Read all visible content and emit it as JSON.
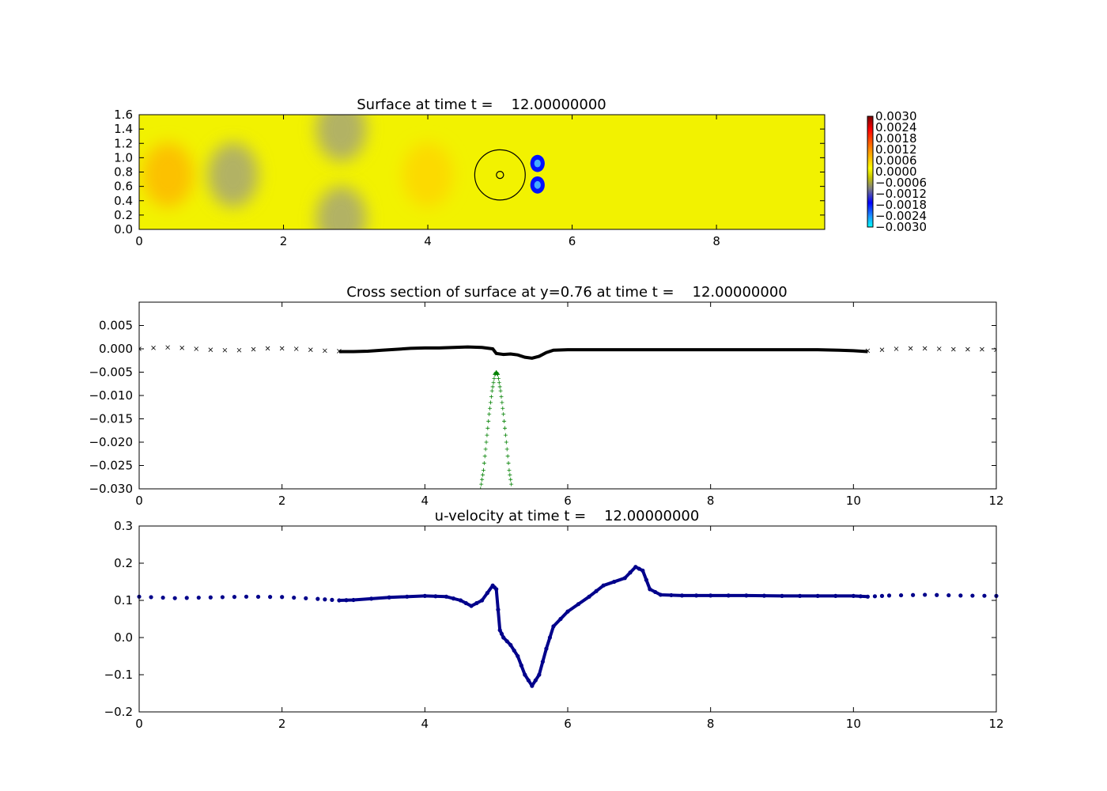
{
  "chart_data": [
    {
      "type": "heatmap",
      "title": "Surface at time t =    12.00000000",
      "xlim": [
        0,
        9.5
      ],
      "ylim": [
        0,
        1.6
      ],
      "xticks": [
        "0",
        "2",
        "4",
        "6",
        "8"
      ],
      "yticks": [
        "0.0",
        "0.2",
        "0.4",
        "0.6",
        "0.8",
        "1.0",
        "1.2",
        "1.4",
        "1.6"
      ],
      "colorbar": {
        "range": [
          -0.003,
          0.003
        ],
        "labels": [
          "0.0030",
          "0.0024",
          "0.0018",
          "0.0012",
          "0.0006",
          "0.0000",
          "−0.0006",
          "−0.0012",
          "−0.0018",
          "−0.0024",
          "−0.0030"
        ],
        "colormap_stops": [
          "#ffffff00"
        ]
      },
      "colors": {
        "background": "#f2f200",
        "positive": "#ffc300",
        "negative_weak": "#a0a070",
        "negative_strong": "#0010ff"
      },
      "features": [
        {
          "kind": "blob",
          "x": 0.4,
          "y": 0.76,
          "value": 0.0008
        },
        {
          "kind": "blob",
          "x": 1.3,
          "y": 0.76,
          "value": -0.0006
        },
        {
          "kind": "blob",
          "x": 2.8,
          "y": 1.4,
          "value": -0.001
        },
        {
          "kind": "blob",
          "x": 2.8,
          "y": 0.15,
          "value": -0.001
        },
        {
          "kind": "blob",
          "x": 4.0,
          "y": 0.76,
          "value": 0.0006
        },
        {
          "kind": "blob",
          "x": 5.52,
          "y": 0.92,
          "value": -0.0028
        },
        {
          "kind": "blob",
          "x": 5.52,
          "y": 0.62,
          "value": -0.0028
        },
        {
          "kind": "circle",
          "x": 5.0,
          "y": 0.76,
          "r": 0.35
        },
        {
          "kind": "circle",
          "x": 5.0,
          "y": 0.76,
          "r": 0.05
        }
      ]
    },
    {
      "type": "scatter",
      "title": "Cross section of surface at y=0.76 at time t =    12.00000000",
      "xlim": [
        0,
        12
      ],
      "ylim": [
        -0.03,
        0.01
      ],
      "xticks": [
        "0",
        "2",
        "4",
        "6",
        "8",
        "10",
        "12"
      ],
      "yticks": [
        "0.005",
        "0.000",
        "−0.005",
        "−0.010",
        "−0.015",
        "−0.020",
        "−0.025",
        "−0.030"
      ],
      "series": [
        {
          "marker": "x",
          "color": "#000000",
          "x": [
            0,
            0.2,
            0.4,
            0.6,
            0.8,
            1.0,
            1.2,
            1.4,
            1.6,
            1.8,
            2.0,
            2.2,
            2.4,
            2.6,
            2.8,
            10.2,
            10.4,
            10.6,
            10.8,
            11.0,
            11.2,
            11.4,
            11.6,
            11.8,
            12.0
          ],
          "y": [
            0.0,
            0.0002,
            0.0003,
            0.0002,
            0.0,
            -0.0002,
            -0.0003,
            -0.0003,
            -0.0001,
            0.0001,
            0.0001,
            0.0,
            -0.0002,
            -0.0004,
            -0.0005,
            -0.0004,
            -0.0002,
            0.0,
            0.0001,
            0.0001,
            0.0,
            -0.0001,
            -0.0001,
            -0.0001,
            -0.0002
          ]
        },
        {
          "marker": "dense-line",
          "color": "#000000",
          "x": [
            2.8,
            3.0,
            3.2,
            3.4,
            3.6,
            3.8,
            4.0,
            4.2,
            4.4,
            4.6,
            4.8,
            4.95,
            5.0,
            5.1,
            5.2,
            5.3,
            5.4,
            5.5,
            5.6,
            5.7,
            5.8,
            6.0,
            6.5,
            7.0,
            7.5,
            8.0,
            8.5,
            9.0,
            9.5,
            9.8,
            10.0,
            10.2
          ],
          "y": [
            -0.0006,
            -0.0006,
            -0.0005,
            -0.0003,
            -0.0001,
            0.0001,
            0.0002,
            0.0002,
            0.0003,
            0.0004,
            0.0003,
            0.0,
            -0.001,
            -0.0012,
            -0.0011,
            -0.0013,
            -0.0018,
            -0.002,
            -0.0016,
            -0.0008,
            -0.0003,
            -0.0002,
            -0.0002,
            -0.0002,
            -0.0002,
            -0.0002,
            -0.0002,
            -0.0002,
            -0.0002,
            -0.0003,
            -0.0004,
            -0.0006
          ]
        },
        {
          "marker": "+",
          "color": "#008000",
          "x": [
            4.78,
            4.82,
            4.86,
            4.9,
            4.94,
            4.98,
            5.0,
            5.02,
            5.06,
            5.1,
            5.14,
            5.18,
            5.22
          ],
          "y": [
            -0.03,
            -0.026,
            -0.02,
            -0.014,
            -0.009,
            -0.0055,
            -0.005,
            -0.0055,
            -0.009,
            -0.014,
            -0.02,
            -0.026,
            -0.03
          ]
        }
      ]
    },
    {
      "type": "scatter",
      "title": "u-velocity at time t =    12.00000000",
      "xlim": [
        0,
        12
      ],
      "ylim": [
        -0.2,
        0.3
      ],
      "xticks": [
        "0",
        "2",
        "4",
        "6",
        "8",
        "10",
        "12"
      ],
      "yticks": [
        "0.3",
        "0.2",
        "0.1",
        "0.0",
        "−0.1",
        "−0.2"
      ],
      "series": [
        {
          "marker": "o",
          "color": "#00008b",
          "x": [
            0,
            0.5,
            1.0,
            1.5,
            2.0,
            2.5,
            2.8,
            3.0,
            3.5,
            4.0,
            4.3,
            4.5,
            4.65,
            4.8,
            4.95,
            5.0,
            5.05,
            5.1,
            5.2,
            5.3,
            5.4,
            5.5,
            5.6,
            5.7,
            5.8,
            6.0,
            6.3,
            6.5,
            6.8,
            6.95,
            7.05,
            7.15,
            7.3,
            7.6,
            8.0,
            8.5,
            9.0,
            9.5,
            10.0,
            10.2,
            10.5,
            11.0,
            11.5,
            12.0
          ],
          "y": [
            0.11,
            0.106,
            0.108,
            0.11,
            0.109,
            0.104,
            0.1,
            0.101,
            0.108,
            0.112,
            0.11,
            0.1,
            0.085,
            0.1,
            0.14,
            0.13,
            0.02,
            0.0,
            -0.02,
            -0.05,
            -0.1,
            -0.13,
            -0.1,
            -0.03,
            0.03,
            0.07,
            0.11,
            0.14,
            0.16,
            0.19,
            0.18,
            0.13,
            0.115,
            0.113,
            0.113,
            0.113,
            0.112,
            0.112,
            0.112,
            0.11,
            0.113,
            0.115,
            0.113,
            0.112
          ]
        }
      ]
    }
  ]
}
